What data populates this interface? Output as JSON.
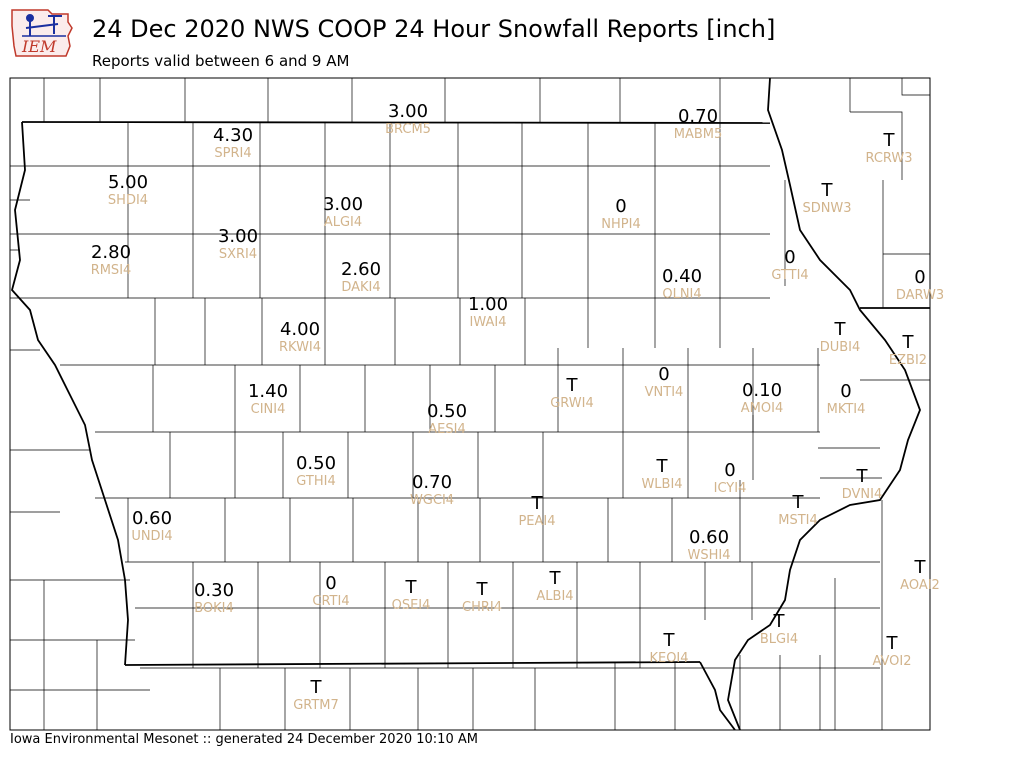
{
  "header": {
    "title": "24 Dec 2020 NWS COOP 24 Hour Snowfall Reports [inch]",
    "subtitle": "Reports valid between 6 and 9 AM"
  },
  "logo": {
    "text": "IEM"
  },
  "footer": {
    "text": "Iowa Environmental Mesonet :: generated 24 December 2020 10:10 AM"
  },
  "colors": {
    "value_text": "#000000",
    "station_text": "#d2b48c",
    "county_line": "#000000",
    "logo_red": "#c0392b",
    "logo_blue": "#1a2fa0"
  },
  "stations": [
    {
      "id": "BRCM5",
      "value": "3.00"
    },
    {
      "id": "MABM5",
      "value": "0.70"
    },
    {
      "id": "SPRI4",
      "value": "4.30"
    },
    {
      "id": "SHDI4",
      "value": "5.00"
    },
    {
      "id": "ALGI4",
      "value": "3.00"
    },
    {
      "id": "NHPI4",
      "value": "0"
    },
    {
      "id": "RCRW3",
      "value": "T"
    },
    {
      "id": "SDNW3",
      "value": "T"
    },
    {
      "id": "RMSI4",
      "value": "2.80"
    },
    {
      "id": "SXRI4",
      "value": "3.00"
    },
    {
      "id": "DAKI4",
      "value": "2.60"
    },
    {
      "id": "GTTI4",
      "value": "0"
    },
    {
      "id": "OLNI4",
      "value": "0.40"
    },
    {
      "id": "DARW3",
      "value": "0"
    },
    {
      "id": "IWAI4",
      "value": "1.00"
    },
    {
      "id": "RKWI4",
      "value": "4.00"
    },
    {
      "id": "DUBI4",
      "value": "T"
    },
    {
      "id": "EZBI2",
      "value": "T"
    },
    {
      "id": "CINI4",
      "value": "1.40"
    },
    {
      "id": "GRWI4",
      "value": "T"
    },
    {
      "id": "VNTI4",
      "value": "0"
    },
    {
      "id": "AMOI4",
      "value": "0.10"
    },
    {
      "id": "MKTI4",
      "value": "0"
    },
    {
      "id": "AESI4",
      "value": "0.50"
    },
    {
      "id": "GTHI4",
      "value": "0.50"
    },
    {
      "id": "WLBI4",
      "value": "T"
    },
    {
      "id": "ICYI4",
      "value": "0"
    },
    {
      "id": "DVNI4",
      "value": "T"
    },
    {
      "id": "WGCI4",
      "value": "0.70"
    },
    {
      "id": "PEAI4",
      "value": "T"
    },
    {
      "id": "MSTI4",
      "value": "T"
    },
    {
      "id": "UNDI4",
      "value": "0.60"
    },
    {
      "id": "WSHI4",
      "value": "0.60"
    },
    {
      "id": "AOAI2",
      "value": "T"
    },
    {
      "id": "BOKI4",
      "value": "0.30"
    },
    {
      "id": "CRTI4",
      "value": "0"
    },
    {
      "id": "OSEI4",
      "value": "T"
    },
    {
      "id": "CHRI4",
      "value": "T"
    },
    {
      "id": "ALBI4",
      "value": "T"
    },
    {
      "id": "BLGI4",
      "value": "T"
    },
    {
      "id": "KEOI4",
      "value": "T"
    },
    {
      "id": "AVOI2",
      "value": "T"
    },
    {
      "id": "GRTM7",
      "value": "T"
    }
  ]
}
